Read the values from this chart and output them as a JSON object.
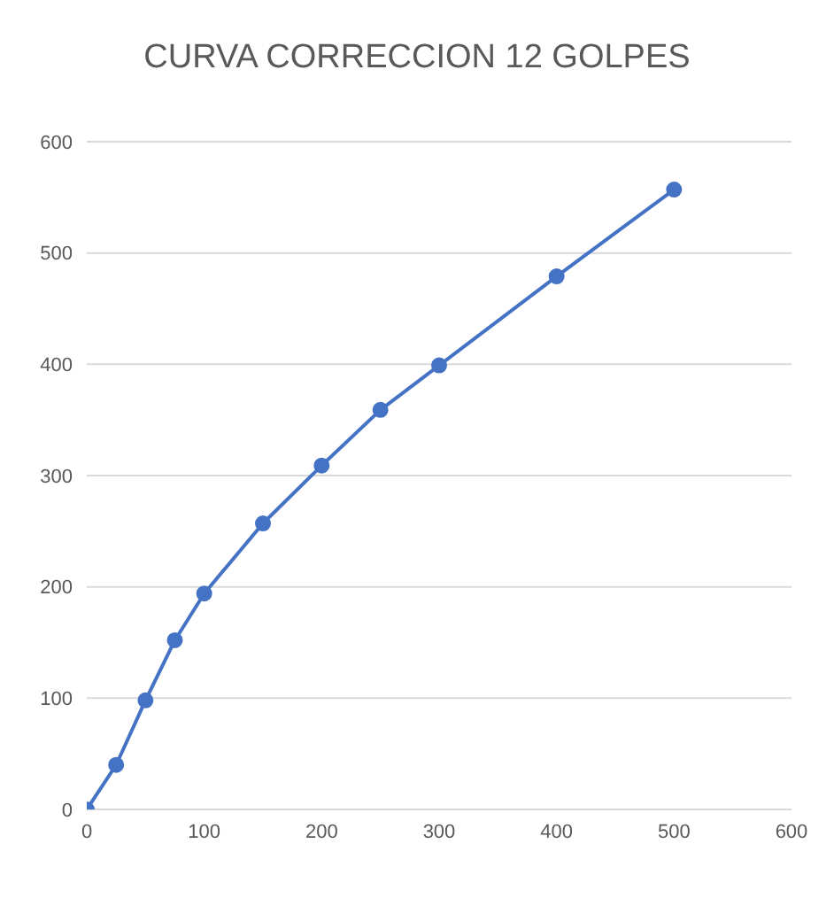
{
  "chart_data": {
    "type": "line",
    "title": "CURVA CORRECCION 12 GOLPES",
    "x": [
      0,
      25,
      50,
      75,
      100,
      150,
      200,
      250,
      300,
      400,
      500
    ],
    "series": [
      {
        "color": "#4472c4",
        "values": [
          0,
          40,
          98,
          152,
          194,
          257,
          309,
          359,
          399,
          479,
          557
        ]
      }
    ],
    "xlim": [
      0,
      600
    ],
    "xticks": [
      0,
      100,
      200,
      300,
      400,
      500,
      600
    ],
    "ylim": [
      0,
      600
    ],
    "yticks": [
      0,
      100,
      200,
      300,
      400,
      500,
      600
    ],
    "grid": "y",
    "marker": "circle",
    "legend": false
  }
}
